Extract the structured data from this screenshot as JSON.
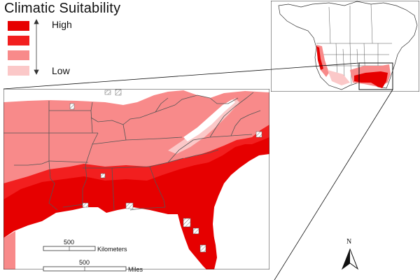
{
  "legend": {
    "title": "Climatic Suitability",
    "high_label": "High",
    "low_label": "Low",
    "classes": [
      {
        "level": 4,
        "color": "#e60000"
      },
      {
        "level": 3,
        "color": "#f21f1f"
      },
      {
        "level": 2,
        "color": "#f88a8a"
      },
      {
        "level": 1,
        "color": "#fbc8c8"
      }
    ]
  },
  "scale_bars": {
    "km": {
      "value": "500",
      "unit": "Kilometers"
    },
    "mi": {
      "value": "500",
      "unit": "Miles"
    }
  },
  "north_arrow": {
    "label": "N"
  },
  "colors": {
    "high": "#e60000",
    "moderate_high": "#f21f1f",
    "moderate_low": "#f88a8a",
    "low": "#fbc8c8",
    "unsuitable": "#ffffff",
    "state_borders": "#555555",
    "hatch": "#777777"
  }
}
